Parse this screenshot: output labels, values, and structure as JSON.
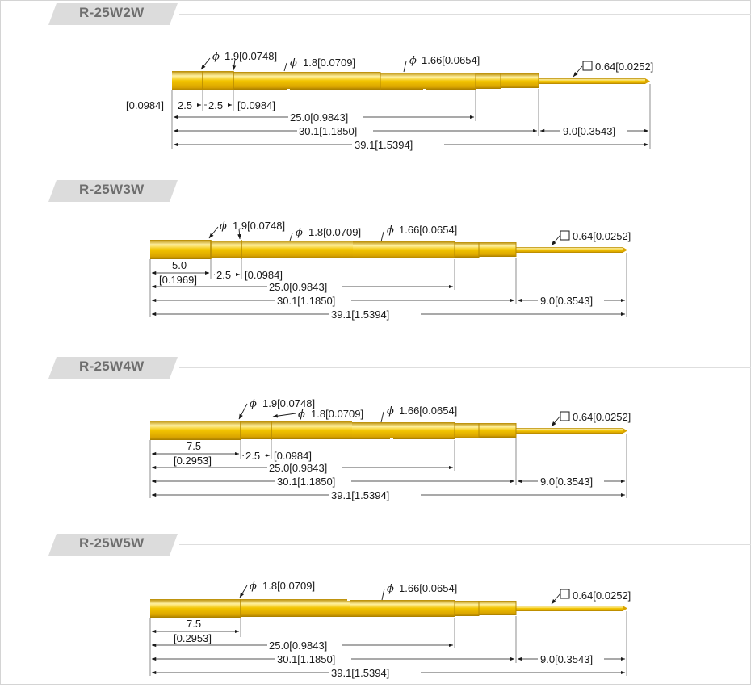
{
  "probes": [
    {
      "title": "R-25W2W",
      "labels": {
        "dia_a": "1.9[0.0748]",
        "dia_b": "1.8[0.0709]",
        "dia_c": "1.66[0.0654]",
        "sq": "0.64[0.0252]",
        "off_in": "[0.0984]",
        "off1": "2.5",
        "off2": "2.5",
        "off2_in": "[0.0984]",
        "d25": "25.0[0.9843]",
        "d30": "30.1[1.1850]",
        "d9": "9.0[0.3543]",
        "d39": "39.1[1.5394]"
      }
    },
    {
      "title": "R-25W3W",
      "labels": {
        "dia_a": "1.9[0.0748]",
        "dia_b": "1.8[0.0709]",
        "dia_c": "1.66[0.0654]",
        "sq": "0.64[0.0252]",
        "off1": "5.0",
        "off1_in": "[0.1969]",
        "off2": "2.5",
        "off2_in": "[0.0984]",
        "d25": "25.0[0.9843]",
        "d30": "30.1[1.1850]",
        "d9": "9.0[0.3543]",
        "d39": "39.1[1.5394]"
      }
    },
    {
      "title": "R-25W4W",
      "labels": {
        "dia_a": "1.9[0.0748]",
        "dia_b": "1.8[0.0709]",
        "dia_c": "1.66[0.0654]",
        "sq": "0.64[0.0252]",
        "off1": "7.5",
        "off1_in": "[0.2953]",
        "off2": "2.5",
        "off2_in": "[0.0984]",
        "d25": "25.0[0.9843]",
        "d30": "30.1[1.1850]",
        "d9": "9.0[0.3543]",
        "d39": "39.1[1.5394]"
      }
    },
    {
      "title": "R-25W5W",
      "labels": {
        "dia_b": "1.8[0.0709]",
        "dia_c": "1.66[0.0654]",
        "sq": "0.64[0.0252]",
        "off1": "7.5",
        "off1_in": "[0.2953]",
        "d25": "25.0[0.9843]",
        "d30": "30.1[1.1850]",
        "d9": "9.0[0.3543]",
        "d39": "39.1[1.5394]"
      }
    }
  ],
  "symbols": {
    "phi": "ϕ"
  },
  "colors": {
    "gold": "#e8b400",
    "gold_dark": "#b68a00",
    "gold_light": "#fff2a0",
    "dim_line": "#333333",
    "tab_bg": "#dcdcdc",
    "tab_text": "#6e6e6e"
  }
}
